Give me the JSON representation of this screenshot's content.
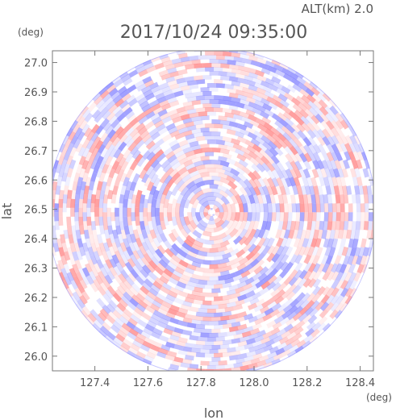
{
  "chart_data": {
    "type": "heatmap",
    "title": "2017/10/24 09:35:00",
    "subtitle": "ALT(km) 2.0",
    "xlabel": "lon",
    "ylabel": "lat",
    "xunit": "(deg)",
    "yunit": "(deg)",
    "xlim": [
      127.24,
      128.45
    ],
    "ylim": [
      25.95,
      27.04
    ],
    "xticks": [
      127.4,
      127.6,
      127.8,
      128.0,
      128.2,
      128.4
    ],
    "xtick_labels": [
      "127.4",
      "127.6",
      "127.8",
      "128.0",
      "128.2",
      "128.4"
    ],
    "yticks": [
      26.0,
      26.1,
      26.2,
      26.3,
      26.4,
      26.5,
      26.6,
      26.7,
      26.8,
      26.9,
      27.0
    ],
    "ytick_labels": [
      "26.0",
      "26.1",
      "26.2",
      "26.3",
      "26.4",
      "26.5",
      "26.6",
      "26.7",
      "26.8",
      "26.9",
      "27.0"
    ],
    "center": {
      "lon": 127.84,
      "lat": 26.49
    },
    "radius_deg": {
      "lon": 0.62,
      "lat": 0.56
    },
    "colormap": {
      "negative": "#8080ff",
      "neutral": "#ffffff",
      "positive": "#ff8080"
    },
    "grid": false
  }
}
